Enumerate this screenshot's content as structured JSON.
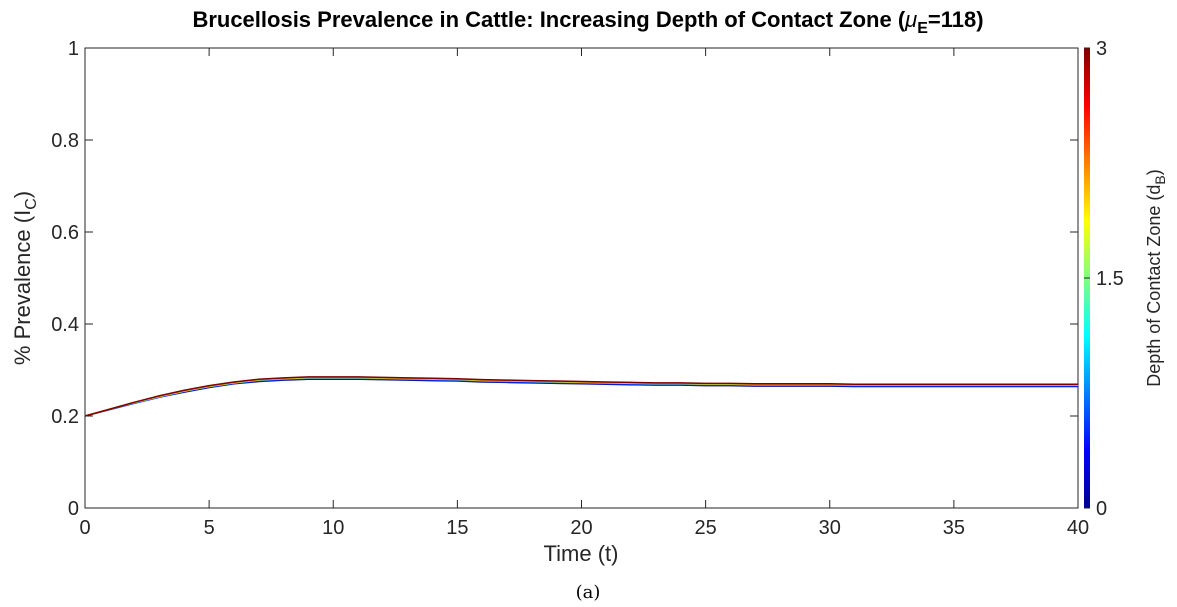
{
  "caption": "(a)",
  "chart_data": {
    "type": "line",
    "title": "Brucellosis Prevalence in Cattle: Increasing Depth of Contact Zone (",
    "title_symbol": "μ",
    "title_subscript": "E",
    "title_suffix": "=118)",
    "xlabel": "Time (t)",
    "ylabel": "% Prevalence (I",
    "ylabel_subscript": "C",
    "ylabel_suffix": ")",
    "xlim": [
      0,
      40
    ],
    "ylim": [
      0,
      1
    ],
    "xticks": [
      0,
      5,
      10,
      15,
      20,
      25,
      30,
      35,
      40
    ],
    "yticks": [
      0,
      0.2,
      0.4,
      0.6,
      0.8,
      1
    ],
    "ytick_labels": [
      "0",
      "0.2",
      "0.4",
      "0.6",
      "0.8",
      "1"
    ],
    "grid": false,
    "colorbar": {
      "label": "Depth of Contact Zone (d",
      "label_subscript": "B",
      "label_suffix": ")",
      "range": [
        0,
        3
      ],
      "ticks": [
        0,
        1.5,
        3
      ],
      "tick_labels": [
        "0",
        "1.5",
        "3"
      ],
      "colormap": "jet"
    },
    "x": [
      0,
      1,
      2,
      3,
      4,
      5,
      6,
      7,
      8,
      9,
      10,
      11,
      12,
      13,
      14,
      15,
      16,
      17,
      18,
      19,
      20,
      21,
      22,
      23,
      24,
      25,
      26,
      27,
      28,
      29,
      30,
      31,
      32,
      33,
      34,
      35,
      36,
      37,
      38,
      39,
      40
    ],
    "series": [
      {
        "color_value": 0.0,
        "values": [
          0.2,
          0.214,
          0.228,
          0.241,
          0.252,
          0.262,
          0.27,
          0.275,
          0.278,
          0.28,
          0.28,
          0.28,
          0.279,
          0.278,
          0.277,
          0.276,
          0.274,
          0.273,
          0.272,
          0.271,
          0.27,
          0.269,
          0.268,
          0.267,
          0.267,
          0.266,
          0.266,
          0.265,
          0.265,
          0.265,
          0.265,
          0.264,
          0.264,
          0.264,
          0.264,
          0.264,
          0.264,
          0.264,
          0.264,
          0.264,
          0.264
        ]
      },
      {
        "color_value": 0.5,
        "values": [
          0.2,
          0.214,
          0.228,
          0.241,
          0.253,
          0.263,
          0.271,
          0.276,
          0.279,
          0.281,
          0.281,
          0.281,
          0.28,
          0.279,
          0.278,
          0.277,
          0.275,
          0.274,
          0.273,
          0.272,
          0.271,
          0.27,
          0.269,
          0.268,
          0.268,
          0.267,
          0.267,
          0.266,
          0.266,
          0.266,
          0.266,
          0.265,
          0.265,
          0.265,
          0.265,
          0.265,
          0.265,
          0.265,
          0.265,
          0.265,
          0.265
        ]
      },
      {
        "color_value": 1.5,
        "values": [
          0.2,
          0.215,
          0.229,
          0.242,
          0.254,
          0.264,
          0.272,
          0.278,
          0.281,
          0.283,
          0.283,
          0.283,
          0.282,
          0.281,
          0.28,
          0.279,
          0.277,
          0.276,
          0.275,
          0.274,
          0.273,
          0.272,
          0.271,
          0.27,
          0.27,
          0.269,
          0.269,
          0.268,
          0.268,
          0.268,
          0.268,
          0.267,
          0.267,
          0.267,
          0.267,
          0.267,
          0.267,
          0.267,
          0.267,
          0.267,
          0.267
        ]
      },
      {
        "color_value": 2.2,
        "values": [
          0.2,
          0.215,
          0.23,
          0.243,
          0.255,
          0.265,
          0.273,
          0.279,
          0.282,
          0.284,
          0.284,
          0.284,
          0.283,
          0.282,
          0.281,
          0.28,
          0.278,
          0.277,
          0.276,
          0.275,
          0.274,
          0.273,
          0.272,
          0.271,
          0.271,
          0.27,
          0.27,
          0.269,
          0.269,
          0.269,
          0.269,
          0.268,
          0.268,
          0.268,
          0.268,
          0.268,
          0.268,
          0.268,
          0.268,
          0.268,
          0.268
        ]
      },
      {
        "color_value": 3.0,
        "values": [
          0.2,
          0.215,
          0.23,
          0.244,
          0.256,
          0.266,
          0.274,
          0.28,
          0.283,
          0.285,
          0.285,
          0.285,
          0.284,
          0.283,
          0.282,
          0.281,
          0.279,
          0.278,
          0.277,
          0.276,
          0.275,
          0.274,
          0.273,
          0.272,
          0.272,
          0.271,
          0.271,
          0.27,
          0.27,
          0.27,
          0.27,
          0.269,
          0.269,
          0.269,
          0.269,
          0.269,
          0.269,
          0.269,
          0.269,
          0.269,
          0.269
        ]
      }
    ]
  }
}
